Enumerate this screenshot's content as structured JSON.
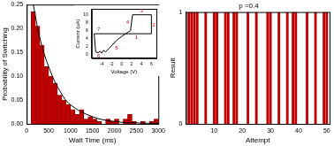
{
  "chart_data": [
    {
      "type": "histogram",
      "x_label": "Wait Time (ms)",
      "y_label": "Probability of Switching",
      "bins": [
        100,
        200,
        300,
        400,
        500,
        600,
        700,
        800,
        900,
        1000,
        1100,
        1200,
        1300,
        1400,
        1500,
        1600,
        1700,
        1800,
        1900,
        2000,
        2100,
        2200,
        2300,
        2400,
        2500,
        2600,
        2700,
        2800,
        2900,
        3000
      ],
      "values": [
        0.235,
        0.205,
        0.165,
        0.12,
        0.1,
        0.085,
        0.06,
        0.05,
        0.04,
        0.03,
        0.02,
        0.03,
        0.01,
        0.015,
        0.01,
        0.005,
        0,
        0.01,
        0.005,
        0.01,
        0,
        0.01,
        0.02,
        0.005,
        0,
        0.005,
        0,
        0.005,
        0.01
      ],
      "color": "#c00000",
      "fit": {
        "x": [
          150,
          300,
          500,
          750,
          1000,
          1500,
          2000,
          2500,
          3000
        ],
        "values": [
          0.25,
          0.18,
          0.12,
          0.07,
          0.04,
          0.015,
          0.005,
          0.002,
          0.001
        ],
        "color": "#000000"
      },
      "xlim": [
        0,
        3000
      ],
      "xticks": [
        0,
        500,
        1000,
        1500,
        2000,
        2500,
        3000
      ],
      "ylim": [
        0,
        0.25
      ],
      "yticks": [
        {
          "value": 0,
          "label": "0.00"
        },
        {
          "value": 0.05,
          "label": "0.05"
        },
        {
          "value": 0.1,
          "label": "0.10"
        },
        {
          "value": 0.15,
          "label": "0.15"
        },
        {
          "value": 0.2,
          "label": "0.20"
        },
        {
          "value": 0.25,
          "label": "0.25"
        }
      ],
      "grid": false
    },
    {
      "type": "line",
      "x_label": "Voltage (V)",
      "y_label": "Current (uA)",
      "x": [
        -5.5,
        0,
        6,
        6,
        2.2,
        1.8,
        0,
        -1,
        -2.5,
        -3.2,
        -3.6,
        -4,
        -4.3,
        -4.7,
        -5.2,
        -5.5
      ],
      "values": [
        5.2,
        5.2,
        5.2,
        10,
        10,
        6,
        4.5,
        3.5,
        1.5,
        0.6,
        1,
        0.3,
        0.8,
        0.4,
        0.6,
        5.2
      ],
      "color": "#000000",
      "annotations": [
        {
          "text": "1",
          "x": 3,
          "y": 4.2
        },
        {
          "text": "2",
          "x": 6.5,
          "y": 7.5
        },
        {
          "text": "3",
          "x": 4,
          "y": 11
        },
        {
          "text": "4",
          "x": 1.2,
          "y": 8
        },
        {
          "text": "5",
          "x": -1,
          "y": 1.5
        },
        {
          "text": "6",
          "x": -4.6,
          "y": -0.5
        },
        {
          "text": "7",
          "x": -4.6,
          "y": 6.3
        }
      ],
      "xlim": [
        -6,
        7
      ],
      "xticks": [
        -4,
        -2,
        0,
        2,
        4,
        6
      ],
      "ylim": [
        -1,
        11.5
      ],
      "yticks": [
        0,
        2,
        4,
        6,
        8,
        10
      ],
      "grid": false
    },
    {
      "type": "bar",
      "title": "p =0.4",
      "x_label": "Attempt",
      "y_label": "Result",
      "x": [
        1,
        2,
        3,
        4,
        5,
        6,
        7,
        8,
        9,
        10,
        11,
        12,
        13,
        14,
        15,
        16,
        17,
        18,
        19,
        20,
        21,
        22,
        23,
        24,
        25,
        26,
        27,
        28,
        29,
        30,
        31,
        32,
        33,
        34,
        35,
        36,
        37,
        38,
        39,
        40,
        41,
        42,
        43,
        44,
        45,
        46,
        47,
        48,
        49,
        50
      ],
      "values": [
        1,
        1,
        1,
        1,
        0,
        0,
        1,
        0,
        0,
        1,
        1,
        0,
        0,
        1,
        1,
        0,
        1,
        1,
        0,
        0,
        0,
        1,
        0,
        0,
        1,
        0,
        0,
        0,
        1,
        1,
        0,
        0,
        1,
        0,
        0,
        1,
        0,
        1,
        1,
        0,
        0,
        0,
        1,
        0,
        0,
        1,
        0,
        0,
        1,
        1
      ],
      "color": "#c00000",
      "xlim": [
        0,
        51
      ],
      "xticks": [
        10,
        20,
        30,
        40,
        50
      ],
      "ylim": [
        0,
        1
      ],
      "yticks": [
        0,
        1
      ],
      "grid": false
    }
  ]
}
